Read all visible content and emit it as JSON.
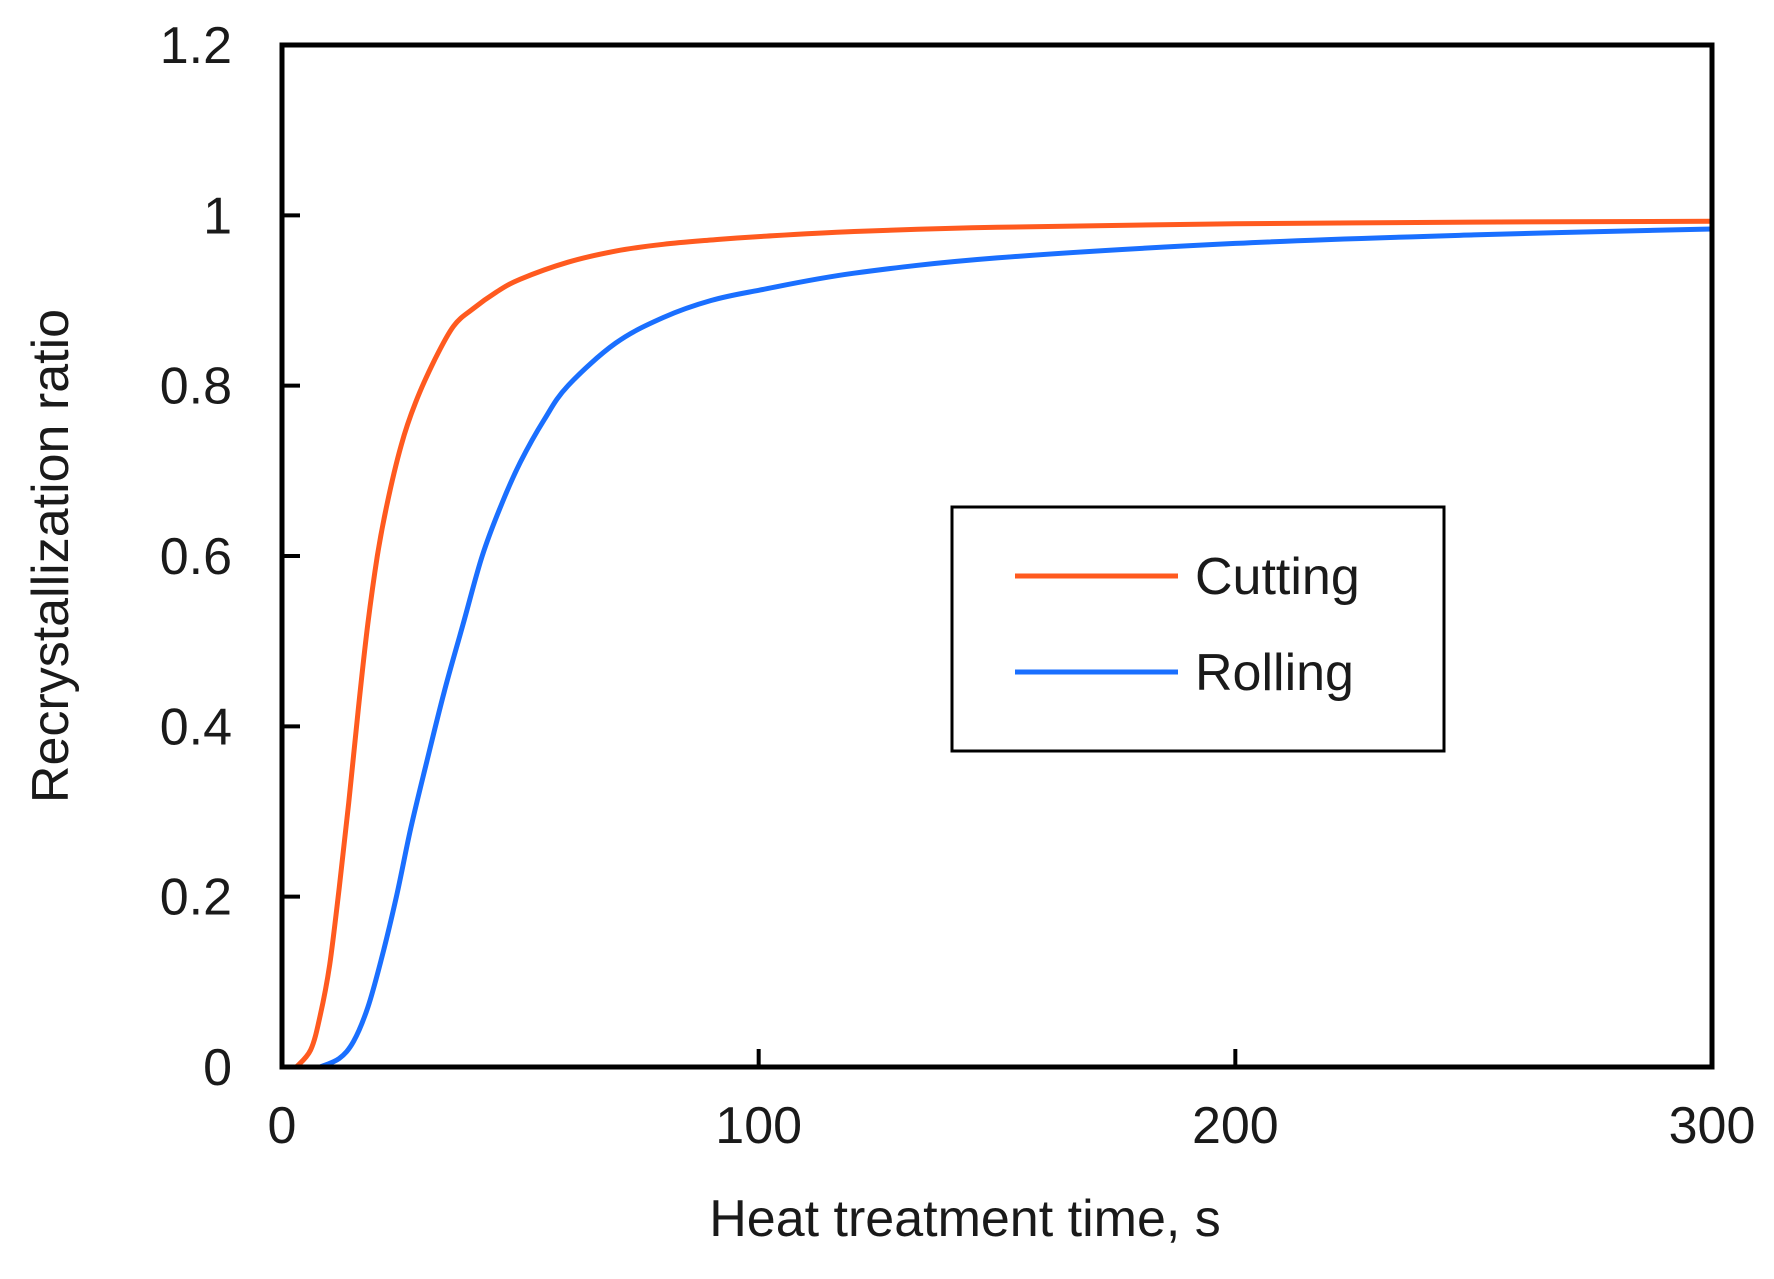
{
  "chart_data": {
    "type": "line",
    "title": "",
    "xlabel": "Heat treatment time, s",
    "ylabel": "Recrystallization ratio",
    "xlim": [
      0,
      300
    ],
    "ylim": [
      0,
      1.2
    ],
    "xticks": [
      0,
      100,
      200,
      300
    ],
    "xtick_labels": [
      "0",
      "100",
      "200",
      "300"
    ],
    "yticks": [
      0,
      0.2,
      0.4,
      0.6,
      0.8,
      1.0,
      1.2
    ],
    "ytick_labels": [
      "0",
      "0.2",
      "0.4",
      "0.6",
      "0.8",
      "1",
      "1.2"
    ],
    "grid": false,
    "legend_position": "center-right",
    "series": [
      {
        "name": "Cutting",
        "color": "#ff5a1f",
        "x": [
          3,
          6,
          8,
          10,
          12,
          14,
          16,
          18,
          20,
          22,
          25,
          28,
          32,
          36,
          40,
          45,
          50,
          60,
          70,
          80,
          90,
          100,
          120,
          150,
          200,
          250,
          300
        ],
        "y": [
          0.0,
          0.02,
          0.06,
          0.12,
          0.21,
          0.31,
          0.42,
          0.52,
          0.6,
          0.66,
          0.73,
          0.78,
          0.83,
          0.87,
          0.89,
          0.91,
          0.925,
          0.945,
          0.958,
          0.966,
          0.971,
          0.975,
          0.981,
          0.986,
          0.99,
          0.992,
          0.993
        ]
      },
      {
        "name": "Rolling",
        "color": "#1a6fff",
        "x": [
          8,
          12,
          15,
          18,
          21,
          24,
          27,
          30,
          34,
          38,
          42,
          46,
          50,
          55,
          60,
          70,
          80,
          90,
          100,
          120,
          150,
          200,
          250,
          300
        ],
        "y": [
          0.0,
          0.01,
          0.03,
          0.07,
          0.13,
          0.2,
          0.28,
          0.35,
          0.44,
          0.52,
          0.6,
          0.66,
          0.71,
          0.76,
          0.8,
          0.85,
          0.88,
          0.9,
          0.912,
          0.932,
          0.95,
          0.967,
          0.977,
          0.984
        ]
      }
    ]
  }
}
